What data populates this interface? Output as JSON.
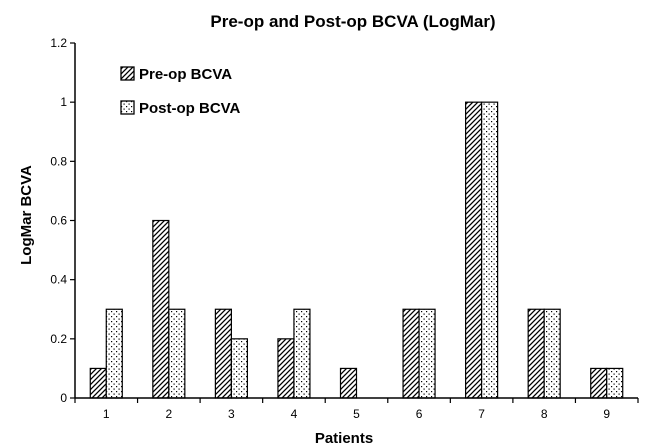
{
  "chart_data": {
    "type": "bar",
    "title": "Pre-op and Post-op BCVA (LogMar)",
    "xlabel": "Patients",
    "ylabel": "LogMar BCVA",
    "categories": [
      "1",
      "2",
      "3",
      "4",
      "5",
      "6",
      "7",
      "8",
      "9"
    ],
    "ylim": [
      0,
      1.2
    ],
    "yticks": [
      "0",
      "0.2",
      "0.4",
      "0.6",
      "0.8",
      "1",
      "1.2"
    ],
    "grid": false,
    "legend_position": "top-left",
    "series": [
      {
        "name": "Pre-op BCVA",
        "pattern": "diagonal-hatch",
        "values": [
          0.1,
          0.6,
          0.3,
          0.2,
          0.1,
          0.3,
          1.0,
          0.3,
          0.1
        ]
      },
      {
        "name": "Post-op BCVA",
        "pattern": "dots",
        "values": [
          0.3,
          0.3,
          0.2,
          0.3,
          0,
          0.3,
          1.0,
          0.3,
          0.1
        ]
      }
    ],
    "colors": {
      "stroke": "#000000",
      "background": "#ffffff"
    }
  }
}
